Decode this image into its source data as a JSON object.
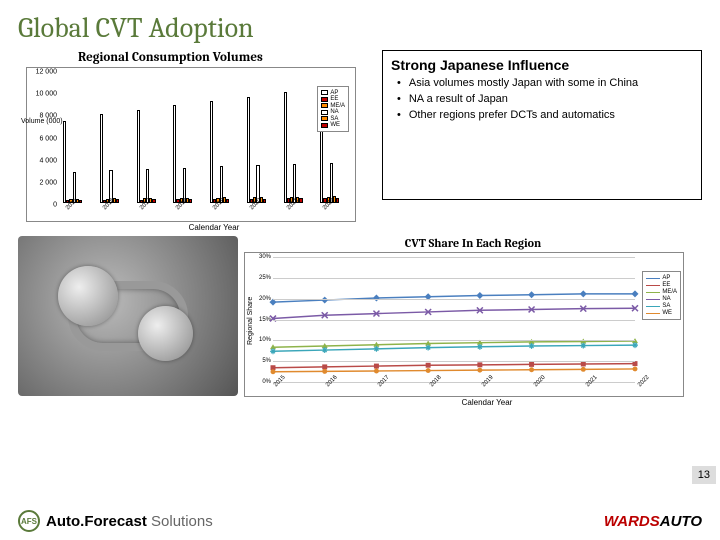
{
  "title": "Global CVT Adoption",
  "bar_chart": {
    "title": "Regional Consumption Volumes",
    "type": "bar",
    "ylabel": "Volume (000)",
    "xlabel": "Calendar Year",
    "ylim": [
      0,
      12000
    ],
    "ytick_step": 2000,
    "yticks": [
      "0",
      "2 000",
      "4 000",
      "6 000",
      "8 000",
      "10 000",
      "12 000"
    ],
    "categories": [
      "2015",
      "2016",
      "2017",
      "2018",
      "2019",
      "2020",
      "2021",
      "2022"
    ],
    "series": [
      {
        "name": "AP",
        "color": "#ffffff",
        "values": [
          7400,
          8000,
          8400,
          8800,
          9200,
          9600,
          10000,
          10400
        ]
      },
      {
        "name": "EE",
        "color": "#c00000",
        "values": [
          250,
          280,
          300,
          330,
          360,
          390,
          420,
          450
        ]
      },
      {
        "name": "ME/A",
        "color": "#ff8c00",
        "values": [
          350,
          380,
          410,
          440,
          470,
          500,
          530,
          560
        ]
      },
      {
        "name": "NA",
        "color": "#ffffff",
        "values": [
          2800,
          3000,
          3100,
          3200,
          3300,
          3400,
          3500,
          3600
        ]
      },
      {
        "name": "SA",
        "color": "#ff8c00",
        "values": [
          400,
          430,
          460,
          490,
          520,
          550,
          580,
          610
        ]
      },
      {
        "name": "WE",
        "color": "#c00000",
        "values": [
          300,
          320,
          340,
          360,
          380,
          400,
          420,
          440
        ]
      }
    ],
    "border_color": "#000000",
    "background_color": "#ffffff"
  },
  "text_box": {
    "title": "Strong Japanese Influence",
    "bullets": [
      "Asia volumes mostly Japan with some in China",
      "NA a result of Japan",
      "Other regions prefer DCTs and automatics"
    ]
  },
  "line_chart": {
    "title": "CVT Share In Each Region",
    "type": "line",
    "ylabel": "Regional Share",
    "xlabel": "Calendar Year",
    "ylim": [
      0,
      30
    ],
    "yticks": [
      "0%",
      "5%",
      "10%",
      "15%",
      "20%",
      "25%",
      "30%"
    ],
    "categories": [
      "2015",
      "2016",
      "2017",
      "2018",
      "2019",
      "2020",
      "2021",
      "2022"
    ],
    "grid_color": "#cccccc",
    "series": [
      {
        "name": "AP",
        "color": "#4a7fbf",
        "marker": "diamond",
        "values": [
          19,
          19.5,
          20,
          20.3,
          20.6,
          20.8,
          21,
          21
        ]
      },
      {
        "name": "EE",
        "color": "#b94a48",
        "marker": "square",
        "values": [
          3,
          3.2,
          3.4,
          3.6,
          3.7,
          3.8,
          3.9,
          4
        ]
      },
      {
        "name": "ME/A",
        "color": "#8eb34a",
        "marker": "triangle",
        "values": [
          8,
          8.3,
          8.6,
          8.9,
          9.1,
          9.3,
          9.4,
          9.5
        ]
      },
      {
        "name": "NA",
        "color": "#7b5aa6",
        "marker": "x",
        "values": [
          15,
          15.8,
          16.2,
          16.6,
          17,
          17.2,
          17.4,
          17.5
        ]
      },
      {
        "name": "SA",
        "color": "#3aa6b9",
        "marker": "star",
        "values": [
          7,
          7.3,
          7.6,
          7.9,
          8.1,
          8.3,
          8.4,
          8.5
        ]
      },
      {
        "name": "WE",
        "color": "#e08a2e",
        "marker": "circle",
        "values": [
          2,
          2.1,
          2.2,
          2.3,
          2.4,
          2.5,
          2.6,
          2.7
        ]
      }
    ]
  },
  "footer": {
    "afs_initials": "AFS",
    "afs1": "Auto.Forecast",
    "afs2": " Solutions",
    "wards1": "WARDS",
    "wards2": "AUTO"
  },
  "page_number": "13"
}
